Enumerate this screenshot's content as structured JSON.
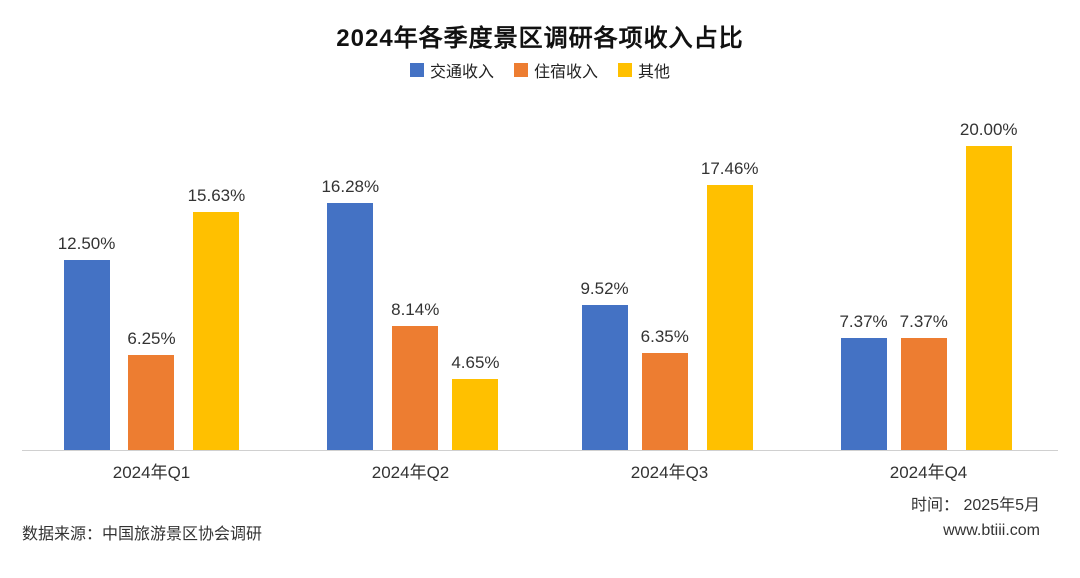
{
  "title": "2024年各季度景区调研各项收入占比",
  "chart_data": {
    "type": "bar",
    "categories": [
      "2024年Q1",
      "2024年Q2",
      "2024年Q3",
      "2024年Q4"
    ],
    "series": [
      {
        "name": "交通收入",
        "color": "#4472C4",
        "values": [
          12.5,
          16.28,
          9.52,
          7.37
        ]
      },
      {
        "name": "住宿收入",
        "color": "#ED7D31",
        "values": [
          6.25,
          8.14,
          6.35,
          7.37
        ]
      },
      {
        "name": "其他",
        "color": "#FFC000",
        "values": [
          15.63,
          4.65,
          17.46,
          20.0
        ]
      }
    ],
    "value_suffix": "%",
    "value_decimals": 2,
    "ylim": [
      0,
      20
    ],
    "grid": false,
    "legend_position": "top",
    "axis_line_color": "#d0d0d0"
  },
  "footer": {
    "source": "数据来源：中国旅游景区协会调研",
    "time": "时间：  2025年5月",
    "website": "www.btiii.com"
  }
}
